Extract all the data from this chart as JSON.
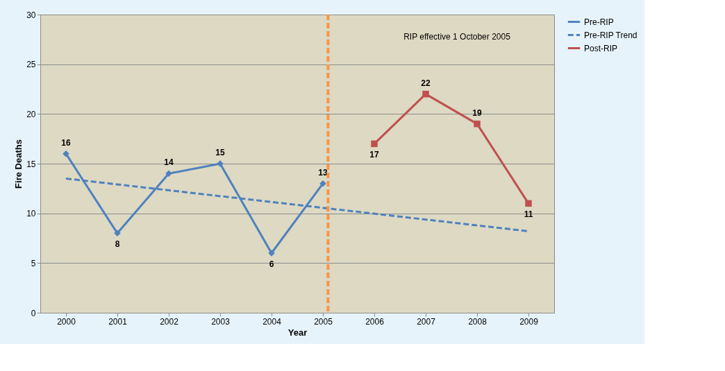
{
  "chart_data": {
    "type": "line",
    "xlabel": "Year",
    "ylabel": "Fire Deaths",
    "x": [
      2000,
      2001,
      2002,
      2003,
      2004,
      2005,
      2006,
      2007,
      2008,
      2009
    ],
    "xlim": [
      1999.5,
      2009.5
    ],
    "xticks": [
      2000,
      2001,
      2002,
      2003,
      2004,
      2005,
      2006,
      2007,
      2008,
      2009
    ],
    "ylim": [
      0,
      30
    ],
    "yticks": [
      0,
      5,
      10,
      15,
      20,
      25,
      30
    ],
    "grid": "y",
    "legend": "right",
    "series": [
      {
        "name": "Pre-RIP",
        "color": "#4f81bd",
        "marker": "diamond",
        "line_style": "solid",
        "values": [
          16,
          8,
          14,
          15,
          6,
          13,
          null,
          null,
          null,
          null
        ],
        "value_labels": [
          "16",
          "8",
          "14",
          "15",
          "6",
          "13",
          null,
          null,
          null,
          null
        ]
      },
      {
        "name": "Pre-RIP Trend",
        "color": "#4f81bd",
        "marker": "none",
        "line_style": "dashed",
        "x": [
          2000,
          2009
        ],
        "values": [
          13.5,
          8.2
        ]
      },
      {
        "name": "Post-RIP",
        "color": "#c0504d",
        "marker": "square",
        "line_style": "solid",
        "values": [
          null,
          null,
          null,
          null,
          null,
          null,
          17,
          22,
          19,
          11
        ],
        "value_labels": [
          null,
          null,
          null,
          null,
          null,
          null,
          "17",
          "22",
          "19",
          "11"
        ]
      }
    ],
    "ref_lines": [
      {
        "axis": "x",
        "value": 2005.1,
        "color": "#f79646",
        "line_style": "dashed"
      }
    ],
    "annotations": [
      "RIP effective 1 October 2005"
    ]
  }
}
